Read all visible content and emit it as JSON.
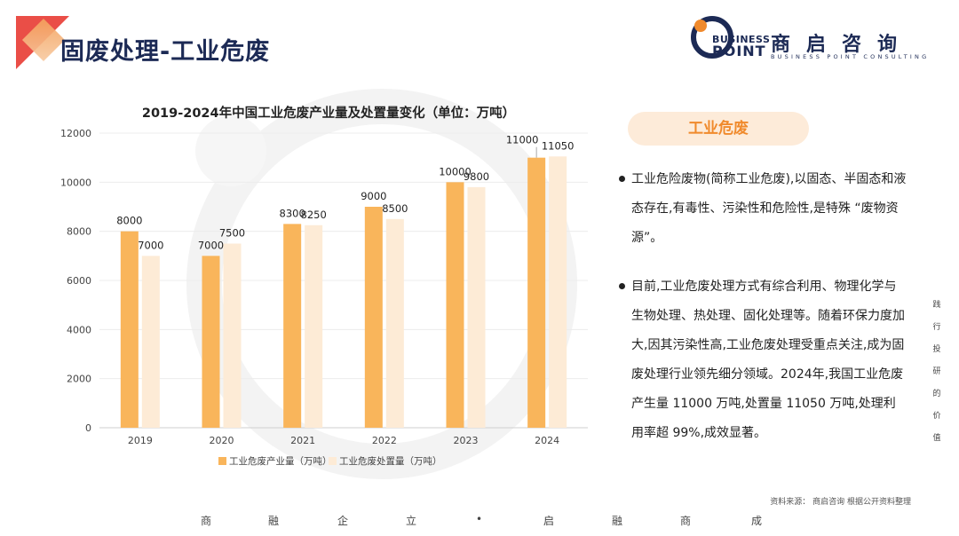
{
  "page": {
    "title": "固废处理-工业危废"
  },
  "logo": {
    "biz": "BUSINESS",
    "point": "POINT",
    "cn": "商启咨询",
    "en": "BUSINESS POINT CONSULTING"
  },
  "chart_data": {
    "type": "bar",
    "title": "2019-2024年中国工业危废产业量及处置量变化（单位：万吨）",
    "categories": [
      "2019",
      "2020",
      "2021",
      "2022",
      "2023",
      "2024"
    ],
    "series": [
      {
        "name": "工业危废产业量（万吨）",
        "values": [
          8000,
          7000,
          8300,
          9000,
          10000,
          11000
        ],
        "color": "#f9b55b"
      },
      {
        "name": "工业危废处置量（万吨）",
        "values": [
          7000,
          7500,
          8250,
          8500,
          9800,
          11050
        ],
        "color": "#fdebd6"
      }
    ],
    "ylim": [
      0,
      12000
    ],
    "yticks": [
      0,
      2000,
      4000,
      6000,
      8000,
      10000,
      12000
    ],
    "grid": true,
    "legend": "bottom"
  },
  "side": {
    "title": "工业危废",
    "bullets": [
      "工业危险废物(简称工业危废),以固态、半固态和液态存在,有毒性、污染性和危险性,是特殊 “废物资源”。",
      "目前,工业危废处理方式有综合利用、物理化学与生物处理、热处理、固化处理等。随着环保力度加大,因其污染性高,工业危废处理受重点关注,成为固废处理行业领先细分领域。2024年,我国工业危废产生量 11000 万吨,处置量 11050 万吨,处理利用率超 99%,成效显著。"
    ]
  },
  "source": "资料来源：  商启咨询 根据公开资料整理",
  "footer": [
    "商",
    "融",
    "企",
    "立",
    "•",
    "启",
    "融",
    "商",
    "成"
  ],
  "vertical": [
    "践",
    "行",
    "投",
    "研",
    "的",
    "价",
    "值"
  ]
}
